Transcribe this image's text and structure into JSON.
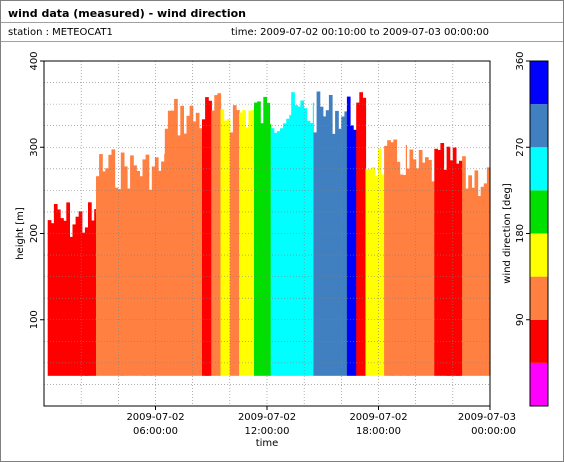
{
  "header": {
    "title": "wind data (measured) - wind direction",
    "station": "station : METEOCAT1",
    "time_range": "time: 2009-07-02 00:10:00 to 2009-07-03 00:00:00"
  },
  "chart_data": {
    "type": "heatmap",
    "title": "wind data (measured) - wind direction",
    "xlabel": "time",
    "ylabel": "height [m]",
    "colorbar_label": "wind direction [deg]",
    "x_ticks": [
      {
        "h": 6,
        "line1": "2009-07-02",
        "line2": "06:00:00"
      },
      {
        "h": 12,
        "line1": "2009-07-02",
        "line2": "12:00:00"
      },
      {
        "h": 18,
        "line1": "2009-07-02",
        "line2": "18:00:00"
      },
      {
        "h": 24,
        "line1": "2009-07-03",
        "line2": "00:00:00"
      }
    ],
    "xlim_hours": [
      0,
      24
    ],
    "y_ticks": [
      100,
      200,
      300,
      400
    ],
    "ylim": [
      0,
      400
    ],
    "grid": true,
    "colorbar": {
      "ticks": [
        90,
        180,
        270,
        360
      ],
      "range": [
        0,
        360
      ],
      "colors": [
        "#ff00ff",
        "#ff0000",
        "#ff8040",
        "#ffff00",
        "#00e000",
        "#00ffff",
        "#4080c0",
        "#0000ff"
      ],
      "thresholds": [
        0,
        45,
        90,
        135,
        180,
        225,
        270,
        315,
        360
      ]
    },
    "data_bottom_height_m": 35,
    "time_resolution_min": 10,
    "direction_segments": [
      {
        "from_h": 0.2,
        "to_h": 2.8,
        "dir_deg": 68,
        "top_m": 240
      },
      {
        "from_h": 2.8,
        "to_h": 6.5,
        "dir_deg": 112,
        "top_m": 300
      },
      {
        "from_h": 6.5,
        "to_h": 8.5,
        "dir_deg": 112,
        "top_m": 360
      },
      {
        "from_h": 8.5,
        "to_h": 9.0,
        "dir_deg": 68,
        "top_m": 365
      },
      {
        "from_h": 9.0,
        "to_h": 9.5,
        "dir_deg": 112,
        "top_m": 365
      },
      {
        "from_h": 9.5,
        "to_h": 10.0,
        "dir_deg": 157,
        "top_m": 365
      },
      {
        "from_h": 10.0,
        "to_h": 10.5,
        "dir_deg": 112,
        "top_m": 365
      },
      {
        "from_h": 10.5,
        "to_h": 11.3,
        "dir_deg": 157,
        "top_m": 365
      },
      {
        "from_h": 11.3,
        "to_h": 12.2,
        "dir_deg": 202,
        "top_m": 365
      },
      {
        "from_h": 12.2,
        "to_h": 13.3,
        "dir_deg": 247,
        "top_m": 365
      },
      {
        "from_h": 13.3,
        "to_h": 14.5,
        "dir_deg": 247,
        "top_m": 365
      },
      {
        "from_h": 14.5,
        "to_h": 15.5,
        "dir_deg": 292,
        "top_m": 365
      },
      {
        "from_h": 15.5,
        "to_h": 16.3,
        "dir_deg": 292,
        "top_m": 365
      },
      {
        "from_h": 16.3,
        "to_h": 16.8,
        "dir_deg": 337,
        "top_m": 365
      },
      {
        "from_h": 16.8,
        "to_h": 17.3,
        "dir_deg": 68,
        "top_m": 365
      },
      {
        "from_h": 17.3,
        "to_h": 18.3,
        "dir_deg": 157,
        "top_m": 310
      },
      {
        "from_h": 18.3,
        "to_h": 19.5,
        "dir_deg": 112,
        "top_m": 310
      },
      {
        "from_h": 19.5,
        "to_h": 21.0,
        "dir_deg": 112,
        "top_m": 300
      },
      {
        "from_h": 21.0,
        "to_h": 22.5,
        "dir_deg": 68,
        "top_m": 305
      },
      {
        "from_h": 22.5,
        "to_h": 24.0,
        "dir_deg": 112,
        "top_m": 290
      }
    ]
  }
}
